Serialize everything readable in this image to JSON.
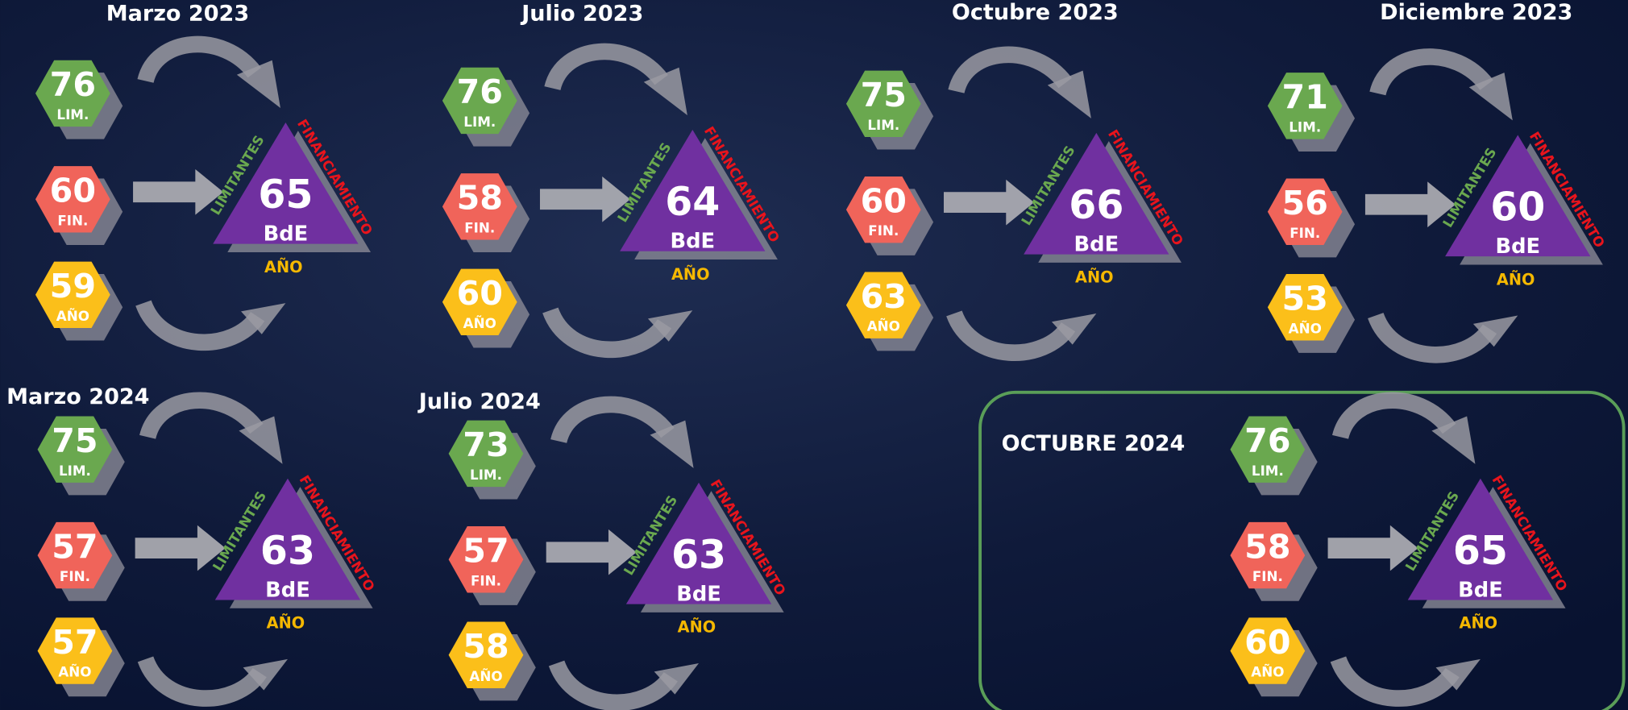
{
  "labels": {
    "lim": "LIM.",
    "fin": "FIN.",
    "ano": "AÑO",
    "bde": "BdE",
    "limitantes": "LIMITANTES",
    "financiamiento": "FINANCIAMIENTO"
  },
  "panels": [
    {
      "title": "Marzo 2023",
      "lim": 76,
      "fin": 60,
      "ano": 59,
      "bde": 65
    },
    {
      "title": "Julio 2023",
      "lim": 76,
      "fin": 58,
      "ano": 60,
      "bde": 64
    },
    {
      "title": "Octubre 2023",
      "lim": 75,
      "fin": 60,
      "ano": 63,
      "bde": 66
    },
    {
      "title": "Diciembre 2023",
      "lim": 71,
      "fin": 56,
      "ano": 53,
      "bde": 60
    },
    {
      "title": "Marzo 2024",
      "lim": 75,
      "fin": 57,
      "ano": 57,
      "bde": 63
    },
    {
      "title": "Julio 2024",
      "lim": 73,
      "fin": 57,
      "ano": 58,
      "bde": 63
    },
    {
      "title": "OCTUBRE 2024",
      "lim": 76,
      "fin": 58,
      "ano": 60,
      "bde": 65
    }
  ]
}
